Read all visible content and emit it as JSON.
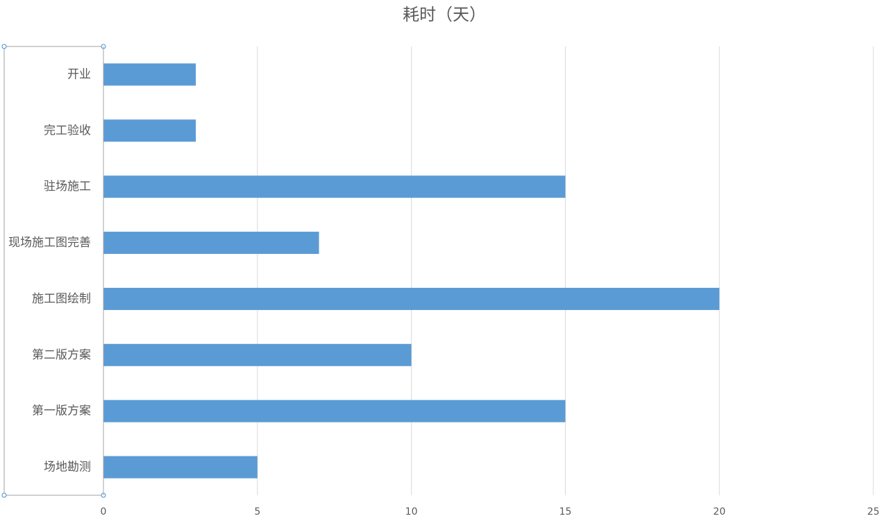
{
  "chart_data": {
    "type": "bar",
    "orientation": "horizontal",
    "title": "耗时（天）",
    "categories": [
      "开业",
      "完工验收",
      "驻场施工",
      "现场施工图完善",
      "施工图绘制",
      "第二版方案",
      "第一版方案",
      "场地勘测"
    ],
    "values": [
      3,
      3,
      15,
      7,
      20,
      10,
      15,
      5
    ],
    "color": "#5b9bd5",
    "xlim": [
      0,
      25
    ],
    "xticks": [
      0,
      5,
      10,
      15,
      20,
      25
    ],
    "grid": true
  }
}
